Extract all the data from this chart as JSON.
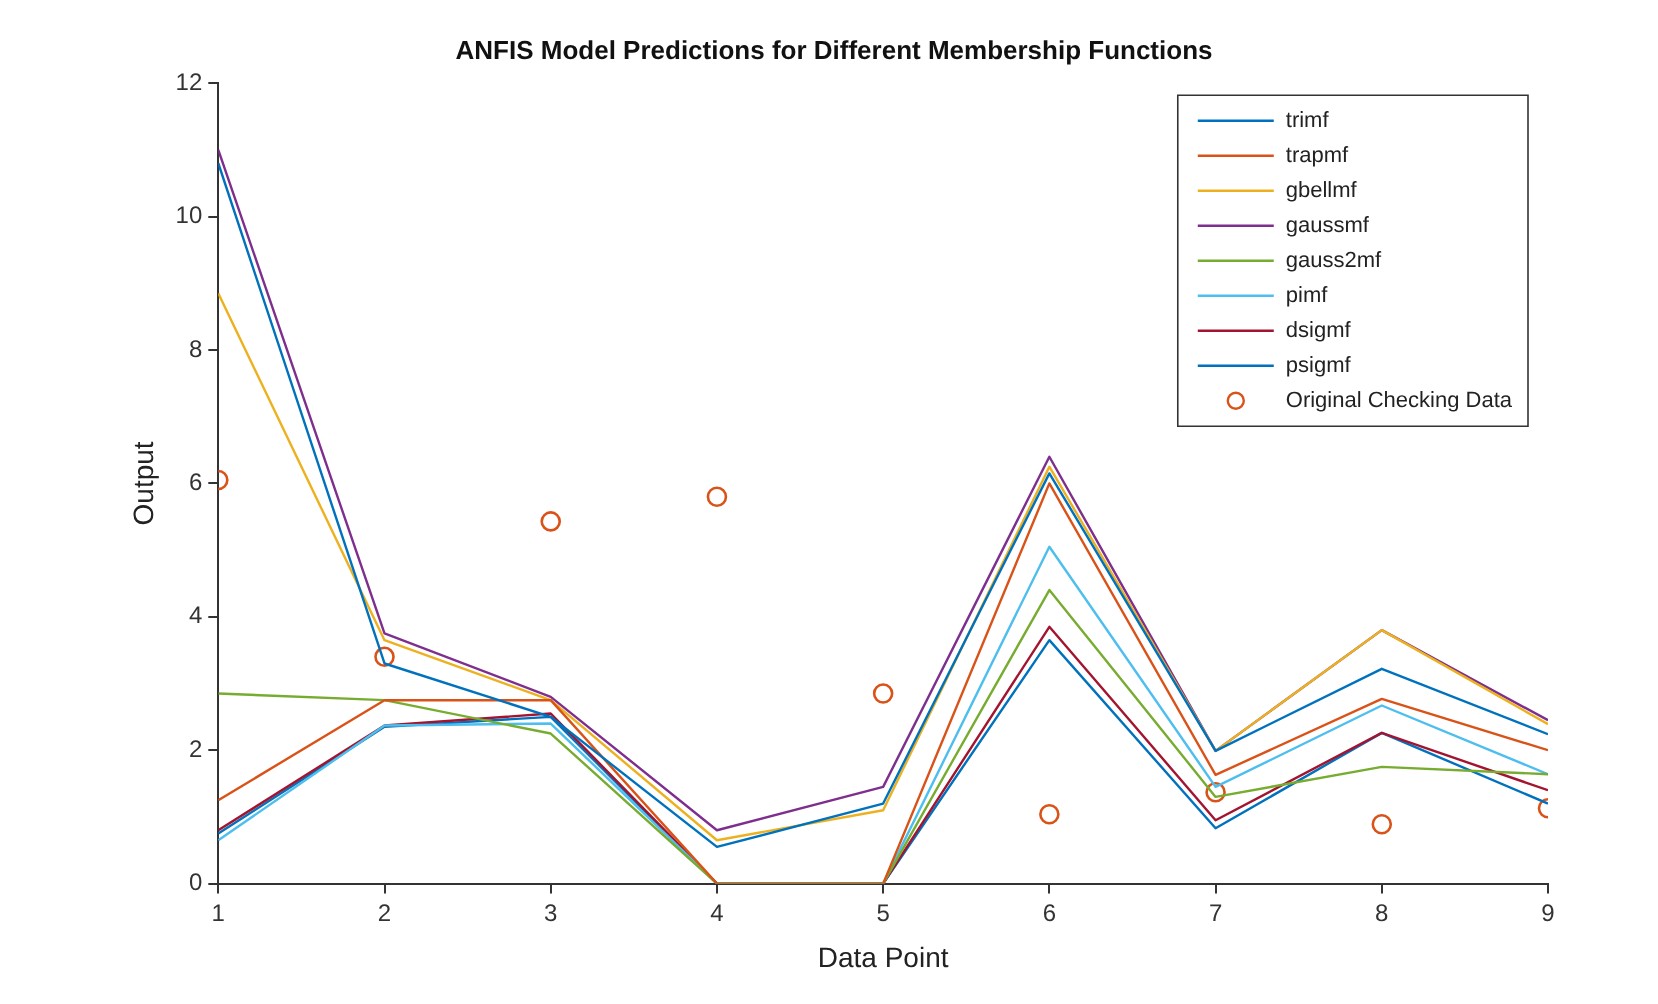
{
  "chart_data": {
    "type": "line",
    "title": "ANFIS Model Predictions for Different Membership Functions",
    "xlabel": "Data Point",
    "ylabel": "Output",
    "x": [
      1,
      2,
      3,
      4,
      5,
      6,
      7,
      8,
      9
    ],
    "series": [
      {
        "name": "trimf",
        "color": "#0072bd",
        "values": [
          10.8,
          3.3,
          2.5,
          0.55,
          1.2,
          6.15,
          1.99,
          3.22,
          2.24
        ]
      },
      {
        "name": "trapmf",
        "color": "#d95319",
        "values": [
          1.25,
          2.75,
          2.75,
          0,
          0,
          6.0,
          1.63,
          2.77,
          2.0
        ]
      },
      {
        "name": "gbellmf",
        "color": "#edb120",
        "values": [
          8.85,
          3.65,
          2.75,
          0.65,
          1.1,
          6.25,
          1.99,
          3.8,
          2.39
        ]
      },
      {
        "name": "gaussmf",
        "color": "#7e2f8e",
        "values": [
          11.0,
          3.75,
          2.8,
          0.8,
          1.45,
          6.4,
          1.99,
          3.8,
          2.45
        ]
      },
      {
        "name": "gauss2mf",
        "color": "#77ac30",
        "values": [
          2.85,
          2.75,
          2.25,
          0,
          0,
          4.4,
          1.3,
          1.75,
          1.64
        ]
      },
      {
        "name": "pimf",
        "color": "#4dbeee",
        "values": [
          0.65,
          2.37,
          2.4,
          0,
          0,
          5.05,
          1.45,
          2.67,
          1.64
        ]
      },
      {
        "name": "dsigmf",
        "color": "#a2142f",
        "values": [
          0.8,
          2.37,
          2.55,
          0,
          0,
          3.85,
          0.95,
          2.26,
          1.4
        ]
      },
      {
        "name": "psigmf",
        "color": "#0072bd",
        "values": [
          0.75,
          2.35,
          2.5,
          0,
          0,
          3.65,
          0.83,
          2.26,
          1.2
        ]
      },
      {
        "name": "Original Checking Data",
        "type": "scatter",
        "marker": "circle",
        "color": "#d95319",
        "values": [
          6.05,
          3.4,
          5.43,
          5.8,
          2.85,
          1.04,
          1.37,
          0.89,
          1.13
        ]
      }
    ],
    "xlim": [
      1,
      9
    ],
    "xticks": [
      1,
      2,
      3,
      4,
      5,
      6,
      7,
      8,
      9
    ],
    "ylim": [
      0,
      12
    ],
    "yticks": [
      0,
      2,
      4,
      6,
      8,
      10,
      12
    ],
    "grid": false,
    "legend": "top right",
    "marker": "none"
  }
}
